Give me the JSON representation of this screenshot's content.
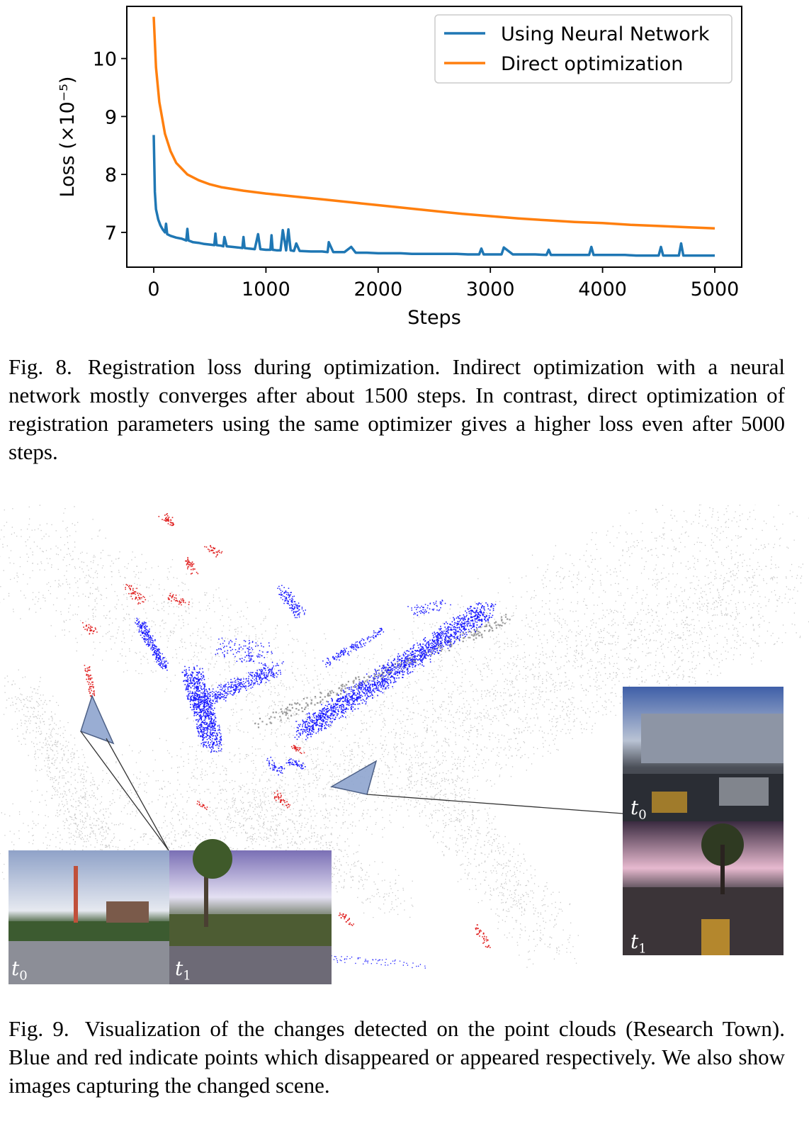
{
  "chart_data": {
    "type": "line",
    "xlabel": "Steps",
    "ylabel": "Loss (×10⁻⁵)",
    "xlim": [
      -240,
      5240
    ],
    "ylim": [
      6.4,
      10.9
    ],
    "xticks": [
      0,
      1000,
      2000,
      3000,
      4000,
      5000
    ],
    "yticks": [
      7,
      8,
      9,
      10
    ],
    "legend_position": "top-right",
    "grid": false,
    "series": [
      {
        "name": "Using Neural Network",
        "color": "#1f77b4",
        "x": [
          0,
          10,
          20,
          40,
          60,
          80,
          100,
          110,
          120,
          150,
          200,
          250,
          290,
          300,
          310,
          350,
          400,
          450,
          500,
          540,
          550,
          560,
          600,
          620,
          630,
          650,
          700,
          750,
          790,
          800,
          810,
          850,
          900,
          930,
          950,
          1000,
          1040,
          1050,
          1060,
          1100,
          1130,
          1150,
          1180,
          1200,
          1220,
          1250,
          1270,
          1300,
          1400,
          1500,
          1550,
          1560,
          1600,
          1700,
          1760,
          1800,
          1900,
          2000,
          2100,
          2200,
          2300,
          2400,
          2500,
          2600,
          2700,
          2800,
          2900,
          2920,
          2940,
          3000,
          3100,
          3120,
          3200,
          3300,
          3400,
          3500,
          3520,
          3540,
          3600,
          3700,
          3800,
          3880,
          3900,
          3920,
          4000,
          4100,
          4200,
          4300,
          4400,
          4500,
          4520,
          4540,
          4600,
          4680,
          4700,
          4720,
          4800,
          4900,
          5000
        ],
        "y": [
          8.68,
          7.7,
          7.4,
          7.22,
          7.12,
          7.05,
          7.0,
          7.15,
          6.97,
          6.94,
          6.91,
          6.89,
          6.86,
          7.06,
          6.86,
          6.83,
          6.82,
          6.8,
          6.79,
          6.78,
          6.98,
          6.78,
          6.77,
          6.76,
          6.92,
          6.76,
          6.75,
          6.74,
          6.73,
          6.92,
          6.73,
          6.72,
          6.71,
          6.97,
          6.71,
          6.7,
          6.7,
          6.95,
          6.7,
          6.69,
          6.69,
          7.04,
          6.69,
          7.05,
          6.69,
          6.68,
          6.81,
          6.68,
          6.67,
          6.67,
          6.66,
          6.83,
          6.66,
          6.66,
          6.75,
          6.65,
          6.65,
          6.64,
          6.64,
          6.64,
          6.63,
          6.63,
          6.63,
          6.63,
          6.63,
          6.62,
          6.62,
          6.72,
          6.62,
          6.62,
          6.62,
          6.74,
          6.62,
          6.62,
          6.62,
          6.61,
          6.7,
          6.61,
          6.61,
          6.61,
          6.61,
          6.61,
          6.75,
          6.61,
          6.61,
          6.61,
          6.61,
          6.6,
          6.6,
          6.6,
          6.75,
          6.6,
          6.6,
          6.6,
          6.81,
          6.6,
          6.6,
          6.6,
          6.6
        ]
      },
      {
        "name": "Direct optimization",
        "color": "#ff7f0e",
        "x": [
          0,
          20,
          50,
          100,
          150,
          200,
          300,
          400,
          500,
          600,
          800,
          1000,
          1250,
          1500,
          1750,
          2000,
          2250,
          2500,
          2750,
          3000,
          3250,
          3500,
          3750,
          4000,
          4250,
          4500,
          4750,
          5000
        ],
        "y": [
          10.72,
          9.85,
          9.25,
          8.7,
          8.4,
          8.2,
          8.0,
          7.9,
          7.83,
          7.78,
          7.72,
          7.67,
          7.62,
          7.57,
          7.52,
          7.47,
          7.42,
          7.37,
          7.32,
          7.28,
          7.24,
          7.21,
          7.18,
          7.16,
          7.13,
          7.11,
          7.09,
          7.07
        ]
      }
    ]
  },
  "figure8_caption": {
    "label": "Fig. 8.",
    "text": "Registration loss during optimization. Indirect optimization with a neural network mostly converges after about 1500 steps. In contrast, direct optimization of registration parameters using the same optimizer gives a higher loss even after 5000 steps."
  },
  "figure9": {
    "left_photos": {
      "t0": "0",
      "t1": "1"
    },
    "right_photos": {
      "t0": "0",
      "t1": "1"
    },
    "colors": {
      "disappeared": "#1a1aff",
      "appeared": "#e02020",
      "background": "#c8c8c8"
    }
  },
  "figure9_caption": {
    "label": "Fig. 9.",
    "text": "Visualization of the changes detected on the point clouds (Research Town). Blue and red indicate points which disappeared or appeared respectively. We also show images capturing the changed scene."
  }
}
